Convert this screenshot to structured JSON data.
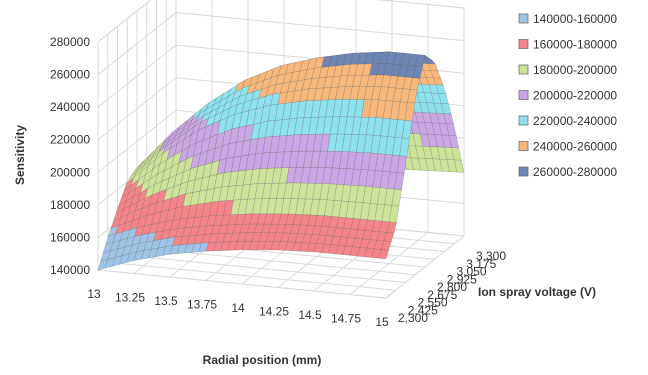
{
  "chart_data": {
    "type": "surface",
    "title": "",
    "xlabel": "Radial position (mm)",
    "ylabel": "Ion spray voltage (V)",
    "zlabel": "Sensitivity",
    "x_ticks": [
      "13",
      "13.25",
      "13.5",
      "13.75",
      "14",
      "14.25",
      "14.5",
      "14.75",
      "15"
    ],
    "y_ticks": [
      "2,300",
      "2,425",
      "2,550",
      "2,675",
      "2,800",
      "2,925",
      "3,050",
      "3,175",
      "3,300"
    ],
    "z_ticks": [
      "140000",
      "160000",
      "180000",
      "200000",
      "220000",
      "240000",
      "260000",
      "280000"
    ],
    "xlim": [
      13,
      15
    ],
    "ylim": [
      2300,
      3300
    ],
    "zlim": [
      140000,
      280000
    ],
    "grid": true,
    "legend_position": "right",
    "legend": [
      {
        "label": "140000-160000",
        "color": "#9dc3e6"
      },
      {
        "label": "160000-180000",
        "color": "#f4858a"
      },
      {
        "label": "180000-200000",
        "color": "#cde39a"
      },
      {
        "label": "200000-220000",
        "color": "#c9a7e4"
      },
      {
        "label": "220000-240000",
        "color": "#8ee2ee"
      },
      {
        "label": "240000-260000",
        "color": "#f8b77a"
      },
      {
        "label": "260000-280000",
        "color": "#6f85b3"
      }
    ],
    "surface": {
      "x": [
        13,
        13.25,
        13.5,
        13.75,
        14,
        14.25,
        14.5,
        14.75,
        15
      ],
      "y": [
        2300,
        2425,
        2550,
        2675,
        2800,
        2925,
        3050,
        3175,
        3300
      ],
      "z": [
        [
          140000,
          148000,
          154000,
          158000,
          161000,
          163000,
          164000,
          164000,
          164000
        ],
        [
          155000,
          163000,
          169000,
          173000,
          176000,
          178000,
          179000,
          179000,
          179000
        ],
        [
          168000,
          182000,
          193000,
          201000,
          206000,
          209000,
          211000,
          212000,
          212000
        ],
        [
          180000,
          201000,
          218000,
          230000,
          238000,
          243000,
          246000,
          248000,
          248000
        ],
        [
          184000,
          208000,
          228000,
          244000,
          255000,
          262000,
          267000,
          270000,
          270000
        ],
        [
          180000,
          202000,
          221000,
          236000,
          247000,
          254000,
          258000,
          260000,
          261000
        ],
        [
          170000,
          189000,
          205000,
          218000,
          227000,
          233000,
          237000,
          239000,
          240000
        ],
        [
          156000,
          171000,
          184000,
          194000,
          201000,
          206000,
          209000,
          211000,
          212000
        ],
        [
          142000,
          152000,
          160000,
          167000,
          172000,
          175000,
          177000,
          178000,
          179000
        ]
      ]
    }
  }
}
